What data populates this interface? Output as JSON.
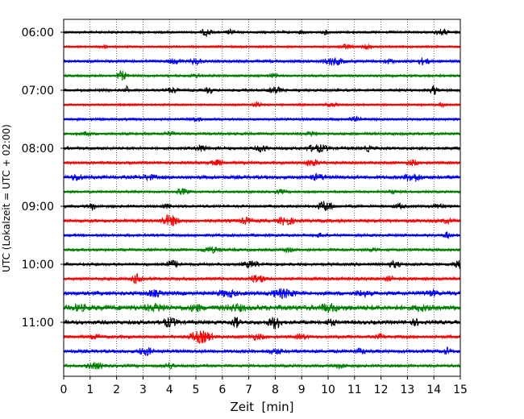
{
  "chart_data": {
    "type": "line",
    "title": "",
    "xlabel": "Zeit  [min]",
    "ylabel": "UTC (Lokalzeit = UTC + 02:00)",
    "xlim": [
      0,
      15
    ],
    "xticks": [
      0,
      1,
      2,
      3,
      4,
      5,
      6,
      7,
      8,
      9,
      10,
      11,
      12,
      13,
      14,
      15
    ],
    "grid_x": true,
    "grid_y": false,
    "legend": "none",
    "row_interval_minutes": 15,
    "colors": [
      "#000000",
      "#ff0000",
      "#0000ff",
      "#008000"
    ],
    "ytick_labels": [
      "06:00",
      "07:00",
      "08:00",
      "09:00",
      "10:00",
      "11:00"
    ],
    "ytick_rows": [
      0,
      4,
      8,
      12,
      16,
      20
    ],
    "rows": [
      {
        "start": "06:00",
        "color": "#000000",
        "noise": 0.25,
        "bursts": [
          [
            5.4,
            0.9,
            0.25
          ],
          [
            6.3,
            0.7,
            0.2
          ],
          [
            9.0,
            0.6,
            0.2
          ],
          [
            9.9,
            0.6,
            0.2
          ],
          [
            14.3,
            0.8,
            0.3
          ]
        ]
      },
      {
        "start": "06:15",
        "color": "#ff0000",
        "noise": 0.22,
        "bursts": [
          [
            1.5,
            0.6,
            0.25
          ],
          [
            10.7,
            0.7,
            0.3
          ],
          [
            11.5,
            0.6,
            0.3
          ]
        ]
      },
      {
        "start": "06:30",
        "color": "#0000ff",
        "noise": 0.3,
        "bursts": [
          [
            4.2,
            0.7,
            0.4
          ],
          [
            5.0,
            0.9,
            0.3
          ],
          [
            10.2,
            1.0,
            0.5
          ],
          [
            12.3,
            0.7,
            0.3
          ],
          [
            13.6,
            0.9,
            0.3
          ]
        ]
      },
      {
        "start": "06:45",
        "color": "#008000",
        "noise": 0.25,
        "bursts": [
          [
            2.2,
            1.2,
            0.2
          ],
          [
            5.0,
            0.6,
            0.3
          ],
          [
            7.9,
            0.6,
            0.3
          ]
        ]
      },
      {
        "start": "07:00",
        "color": "#000000",
        "noise": 0.28,
        "bursts": [
          [
            2.4,
            1.1,
            0.1
          ],
          [
            4.1,
            0.8,
            0.3
          ],
          [
            5.5,
            1.0,
            0.15
          ],
          [
            8.0,
            0.9,
            0.3
          ],
          [
            14.0,
            1.2,
            0.15
          ]
        ]
      },
      {
        "start": "07:15",
        "color": "#ff0000",
        "noise": 0.22,
        "bursts": [
          [
            7.3,
            0.8,
            0.2
          ],
          [
            10.1,
            0.6,
            0.3
          ],
          [
            14.3,
            0.9,
            0.1
          ]
        ]
      },
      {
        "start": "07:30",
        "color": "#0000ff",
        "noise": 0.25,
        "bursts": [
          [
            5.0,
            0.6,
            0.3
          ],
          [
            11.0,
            0.7,
            0.3
          ]
        ]
      },
      {
        "start": "07:45",
        "color": "#008000",
        "noise": 0.28,
        "bursts": [
          [
            0.9,
            0.7,
            0.2
          ],
          [
            4.0,
            0.6,
            0.3
          ],
          [
            9.4,
            0.7,
            0.3
          ]
        ]
      },
      {
        "start": "08:00",
        "color": "#000000",
        "noise": 0.3,
        "bursts": [
          [
            5.2,
            0.9,
            0.3
          ],
          [
            7.5,
            0.9,
            0.3
          ],
          [
            9.6,
            1.0,
            0.5
          ],
          [
            11.5,
            0.8,
            0.2
          ]
        ]
      },
      {
        "start": "08:15",
        "color": "#ff0000",
        "noise": 0.3,
        "bursts": [
          [
            5.8,
            0.8,
            0.3
          ],
          [
            9.4,
            0.9,
            0.4
          ],
          [
            13.2,
            0.8,
            0.3
          ]
        ]
      },
      {
        "start": "08:30",
        "color": "#0000ff",
        "noise": 0.38,
        "bursts": [
          [
            0.5,
            0.9,
            0.3
          ],
          [
            3.2,
            0.8,
            0.4
          ],
          [
            9.6,
            0.9,
            0.4
          ],
          [
            13.2,
            1.2,
            0.4
          ]
        ]
      },
      {
        "start": "08:45",
        "color": "#008000",
        "noise": 0.25,
        "bursts": [
          [
            4.5,
            0.8,
            0.3
          ],
          [
            8.2,
            0.6,
            0.3
          ],
          [
            12.4,
            0.6,
            0.3
          ]
        ]
      },
      {
        "start": "09:00",
        "color": "#000000",
        "noise": 0.28,
        "bursts": [
          [
            1.1,
            0.9,
            0.15
          ],
          [
            3.9,
            0.7,
            0.3
          ],
          [
            9.9,
            1.3,
            0.35
          ],
          [
            12.7,
            0.7,
            0.3
          ],
          [
            14.2,
            0.8,
            0.3
          ]
        ]
      },
      {
        "start": "09:15",
        "color": "#ff0000",
        "noise": 0.35,
        "bursts": [
          [
            4.0,
            1.4,
            0.4
          ],
          [
            6.9,
            0.9,
            0.3
          ],
          [
            8.4,
            1.2,
            0.35
          ],
          [
            14.5,
            0.7,
            0.3
          ]
        ]
      },
      {
        "start": "09:30",
        "color": "#0000ff",
        "noise": 0.28,
        "bursts": [
          [
            9.7,
            0.6,
            0.3
          ],
          [
            14.5,
            0.9,
            0.15
          ]
        ]
      },
      {
        "start": "09:45",
        "color": "#008000",
        "noise": 0.28,
        "bursts": [
          [
            5.6,
            0.8,
            0.5
          ],
          [
            8.5,
            0.7,
            0.3
          ],
          [
            11.7,
            0.6,
            0.3
          ]
        ]
      },
      {
        "start": "10:00",
        "color": "#000000",
        "noise": 0.3,
        "bursts": [
          [
            4.1,
            1.0,
            0.4
          ],
          [
            7.1,
            0.9,
            0.4
          ],
          [
            12.5,
            0.9,
            0.3
          ],
          [
            14.9,
            1.3,
            0.2
          ]
        ]
      },
      {
        "start": "10:15",
        "color": "#ff0000",
        "noise": 0.32,
        "bursts": [
          [
            2.8,
            1.3,
            0.25
          ],
          [
            7.3,
            1.0,
            0.4
          ],
          [
            12.3,
            0.7,
            0.3
          ]
        ]
      },
      {
        "start": "10:30",
        "color": "#0000ff",
        "noise": 0.42,
        "bursts": [
          [
            3.4,
            0.9,
            0.4
          ],
          [
            6.2,
            1.0,
            0.5
          ],
          [
            8.3,
            1.2,
            0.6
          ],
          [
            11.3,
            0.9,
            0.4
          ],
          [
            13.9,
            0.9,
            0.4
          ]
        ]
      },
      {
        "start": "10:45",
        "color": "#008000",
        "noise": 0.55,
        "bursts": [
          [
            0.6,
            1.0,
            0.4
          ],
          [
            3.5,
            1.0,
            0.7
          ],
          [
            5.0,
            1.1,
            0.3
          ],
          [
            6.5,
            1.0,
            0.6
          ],
          [
            10.0,
            1.2,
            0.5
          ],
          [
            13.5,
            0.9,
            0.5
          ]
        ]
      },
      {
        "start": "11:00",
        "color": "#000000",
        "noise": 0.4,
        "bursts": [
          [
            4.0,
            1.2,
            0.4
          ],
          [
            6.5,
            1.4,
            0.2
          ],
          [
            8.0,
            1.6,
            0.3
          ],
          [
            10.1,
            0.9,
            0.3
          ],
          [
            13.3,
            0.9,
            0.3
          ]
        ]
      },
      {
        "start": "11:15",
        "color": "#ff0000",
        "noise": 0.32,
        "bursts": [
          [
            1.2,
            0.7,
            0.3
          ],
          [
            5.2,
            1.5,
            0.5
          ],
          [
            7.3,
            0.8,
            0.4
          ],
          [
            9.0,
            0.8,
            0.3
          ],
          [
            12.0,
            0.7,
            0.3
          ]
        ]
      },
      {
        "start": "11:30",
        "color": "#0000ff",
        "noise": 0.35,
        "bursts": [
          [
            3.1,
            1.1,
            0.35
          ],
          [
            8.0,
            0.8,
            0.4
          ],
          [
            11.2,
            0.8,
            0.3
          ],
          [
            14.5,
            1.0,
            0.2
          ]
        ]
      },
      {
        "start": "11:45",
        "color": "#008000",
        "noise": 0.3,
        "bursts": [
          [
            1.2,
            0.9,
            0.4
          ],
          [
            4.0,
            0.9,
            0.3
          ],
          [
            10.5,
            0.7,
            0.3
          ]
        ]
      }
    ]
  }
}
